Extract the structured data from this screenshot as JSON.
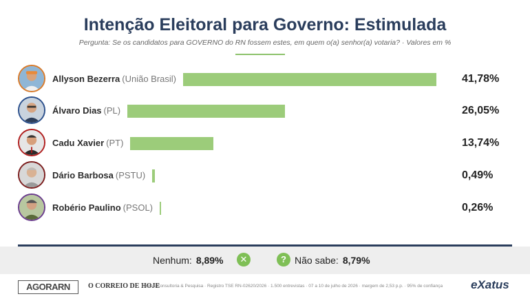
{
  "header": {
    "title": "Intenção Eleitoral para Governo: Estimulada",
    "subtitle": "Pergunta: Se os candidatos para GOVERNO do RN fossem estes, em quem o(a) senhor(a) votaria? · Valores em %"
  },
  "chart_data": {
    "type": "bar",
    "orientation": "horizontal",
    "title": "Intenção Eleitoral para Governo: Estimulada",
    "categories": [
      "Allyson Bezerra (União Brasil)",
      "Álvaro Dias (PL)",
      "Cadu Xavier (PT)",
      "Dário Barbosa (PSTU)",
      "Robério Paulino (PSOL)"
    ],
    "values": [
      41.78,
      26.05,
      13.74,
      0.49,
      0.26
    ],
    "unit": "%",
    "grid": false,
    "legend": "none",
    "bar_color": "#9ccc7a",
    "candidates": [
      {
        "name": "Allyson Bezerra",
        "party": "(União Brasil)",
        "value": 41.78,
        "label": "41,78%",
        "ring_color": "#d87a2a"
      },
      {
        "name": "Álvaro Dias",
        "party": "(PL)",
        "value": 26.05,
        "label": "26,05%",
        "ring_color": "#2a4f8c"
      },
      {
        "name": "Cadu Xavier",
        "party": "(PT)",
        "value": 13.74,
        "label": "13,74%",
        "ring_color": "#b01d1d"
      },
      {
        "name": "Dário Barbosa",
        "party": "(PSTU)",
        "value": 0.49,
        "label": "0,49%",
        "ring_color": "#7b1d1d"
      },
      {
        "name": "Robério Paulino",
        "party": "(PSOL)",
        "value": 0.26,
        "label": "0,26%",
        "ring_color": "#6a3c8c"
      }
    ]
  },
  "others": {
    "nenhum_label": "Nenhum:",
    "nenhum_value": "8,89%",
    "nenhum_icon": "x-icon",
    "naosabe_label": "Não sabe:",
    "naosabe_value": "8,79%",
    "naosabe_icon": "question-icon"
  },
  "footer": {
    "logo_agora": "AGORARN",
    "logo_correio": "O CORREIO DE HOJE",
    "info": "Exatus Consultoria & Pesquisa · Registro TSE RN-02620/2026 · 1.500 entrevistas · 07 a 10 de julho de 2026 · margem de 2,53 p.p. · 95% de confiança",
    "logo_exatus": "eXatus"
  },
  "colors": {
    "title": "#2a3d5c",
    "bar": "#9ccc7a",
    "accent_green": "#7fbf56"
  }
}
